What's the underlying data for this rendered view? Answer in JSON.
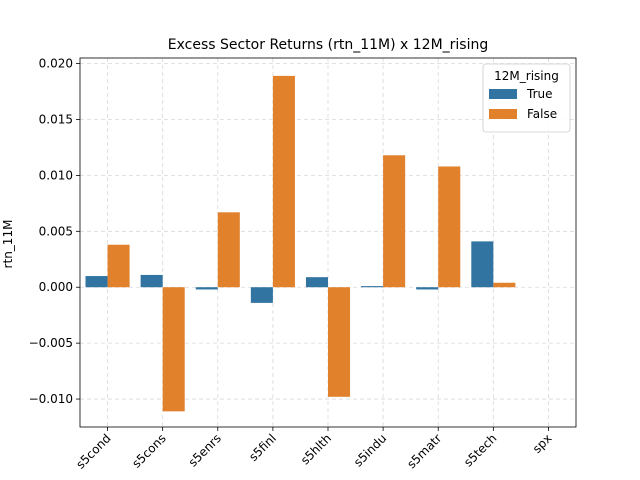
{
  "chart_data": {
    "type": "bar",
    "title": "Excess Sector Returns (rtn_11M) x 12M_rising",
    "xlabel": "",
    "ylabel": "rtn_11M",
    "categories": [
      "s5cond",
      "s5cons",
      "s5enrs",
      "s5finl",
      "s5hlth",
      "s5indu",
      "s5matr",
      "s5tech",
      "spx"
    ],
    "ylim": [
      -0.0125,
      0.0205
    ],
    "yticks": [
      -0.01,
      -0.005,
      0.0,
      0.005,
      0.01,
      0.015,
      0.02
    ],
    "ytick_labels": [
      "−0.010",
      "−0.005",
      "0.000",
      "0.005",
      "0.010",
      "0.015",
      "0.020"
    ],
    "grid": true,
    "legend": {
      "title": "12M_rising",
      "placement": "top-right"
    },
    "series": [
      {
        "name": "True",
        "color": "#3274a1",
        "values": [
          0.001,
          0.0011,
          -0.0002,
          -0.0014,
          0.0009,
          0.0001,
          -0.0002,
          0.0041,
          null
        ]
      },
      {
        "name": "False",
        "color": "#e1812c",
        "values": [
          0.0038,
          -0.0111,
          0.0067,
          0.0189,
          -0.0098,
          0.0118,
          0.0108,
          0.0004,
          null
        ]
      }
    ]
  }
}
